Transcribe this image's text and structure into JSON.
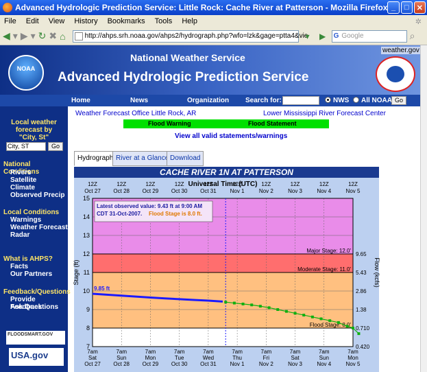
{
  "window": {
    "title": "Advanced Hydrologic Prediction Service: Little Rock: Cache River at Patterson - Mozilla Firefox"
  },
  "menu": [
    "File",
    "Edit",
    "View",
    "History",
    "Bookmarks",
    "Tools",
    "Help"
  ],
  "url": "http://ahps.srh.noaa.gov/ahps2/hydrograph.php?wfo=lzk&gage=ptta4&vie",
  "search_placeholder": "Google",
  "header": {
    "nws": "National Weather Service",
    "ahps": "Advanced Hydrologic Prediction Service",
    "weather_gov": "weather.gov",
    "noaa": "NOAA"
  },
  "nav": {
    "home": "Home",
    "news": "News",
    "org": "Organization",
    "search_for": "Search for:",
    "nws": "NWS",
    "all_noaa": "All NOAA",
    "go": "Go"
  },
  "sidebar": {
    "local_forecast": "Local weather forecast by \"City, St\"",
    "city_value": "City, ST",
    "go": "Go",
    "national_heading": "National Conditions",
    "national": [
      "Rivers",
      "Satellite",
      "Climate",
      "Observed Precip"
    ],
    "local_heading": "Local Conditions",
    "local": [
      "Warnings",
      "Weather Forecast",
      "Radar"
    ],
    "ahps_heading": "What is AHPS?",
    "ahps": [
      "Facts",
      "Our Partners"
    ],
    "feedback_heading": "Feedback/Questions",
    "feedback": [
      "Provide Feedback",
      "Ask Questions"
    ],
    "floodsmart": "FLOODSMART.GOV",
    "usagov": "USA.gov"
  },
  "content": {
    "wfo": "Weather Forecast Office Little Rock, AR",
    "lmrfc": "Lower Mississippi River Forecast Center",
    "flood_warning": "Flood Warning",
    "flood_statement": "Flood Statement",
    "view_all": "View all valid statements/warnings",
    "tabs": [
      "Hydrograph",
      "River at a Glance",
      "Download"
    ]
  },
  "chart_data": {
    "type": "line",
    "title": "CACHE RIVER 1N AT PATTERSON",
    "top_axis_title": "Universal Time (UTC)",
    "top_ticks": [
      [
        "12Z",
        "Oct 27"
      ],
      [
        "12Z",
        "Oct 28"
      ],
      [
        "12Z",
        "Oct 29"
      ],
      [
        "12Z",
        "Oct 30"
      ],
      [
        "12Z",
        "Oct 31"
      ],
      [
        "12Z",
        "Nov 1"
      ],
      [
        "12Z",
        "Nov 2"
      ],
      [
        "12Z",
        "Nov 3"
      ],
      [
        "12Z",
        "Nov 4"
      ],
      [
        "12Z",
        "Nov 5"
      ]
    ],
    "bottom_ticks": [
      [
        "7am",
        "Sat",
        "Oct 27"
      ],
      [
        "7am",
        "Sun",
        "Oct 28"
      ],
      [
        "7am",
        "Mon",
        "Oct 29"
      ],
      [
        "7am",
        "Tue",
        "Oct 30"
      ],
      [
        "7am",
        "Wed",
        "Oct 31"
      ],
      [
        "7am",
        "Thu",
        "Nov 1"
      ],
      [
        "7am",
        "Fri",
        "Nov 2"
      ],
      [
        "7am",
        "Sat",
        "Nov 3"
      ],
      [
        "7am",
        "Sun",
        "Nov 4"
      ],
      [
        "7am",
        "Mon",
        "Nov 5"
      ]
    ],
    "ylabel": "Stage (ft)",
    "y2label": "Flow (kcfs)",
    "ylim": [
      7,
      15
    ],
    "y_ticks": [
      7,
      8,
      9,
      10,
      11,
      12,
      13,
      14,
      15
    ],
    "flow_ticks": [
      {
        "stage": 12,
        "label": "9.65"
      },
      {
        "stage": 11,
        "label": "5.43"
      },
      {
        "stage": 10,
        "label": "2.86"
      },
      {
        "stage": 9,
        "label": "1.38"
      },
      {
        "stage": 8,
        "label": "0.710"
      },
      {
        "stage": 7,
        "label": "0.420"
      }
    ],
    "thresholds": {
      "major": 12,
      "moderate": 11,
      "flood": 8
    },
    "threshold_labels": {
      "major": "Major Stage: 12.0'",
      "moderate": "Moderate Stage: 11.0'",
      "flood": "Flood Stage: 8.0'"
    },
    "colors": {
      "major": "#e98ce9",
      "moderate": "#ff6e6e",
      "minor": "#ffc080",
      "observed": "#1a1aff",
      "forecast": "#10b010"
    },
    "annotation": {
      "line1": "Latest observed value: 9.43 ft at 9:00 AM",
      "line2": "CDT 31-Oct-2007.",
      "line3": "Flood Stage is 8.0 ft."
    },
    "start_value_label": "9.85 ft",
    "observed": {
      "x": [
        0,
        0.5,
        1,
        1.5,
        2,
        2.5,
        3,
        3.5,
        4,
        4.5
      ],
      "y": [
        9.85,
        9.8,
        9.75,
        9.7,
        9.65,
        9.6,
        9.56,
        9.52,
        9.48,
        9.43
      ]
    },
    "forecast": {
      "x": [
        4.6,
        4.9,
        5.2,
        5.5,
        5.8,
        6.1,
        6.4,
        6.7,
        7,
        7.3,
        7.6,
        7.9,
        8.2,
        8.5,
        8.8,
        9,
        9.2
      ],
      "y": [
        9.4,
        9.35,
        9.3,
        9.25,
        9.18,
        9.1,
        9,
        8.9,
        8.8,
        8.7,
        8.6,
        8.5,
        8.4,
        8.3,
        8.1,
        8,
        7.7
      ]
    }
  }
}
